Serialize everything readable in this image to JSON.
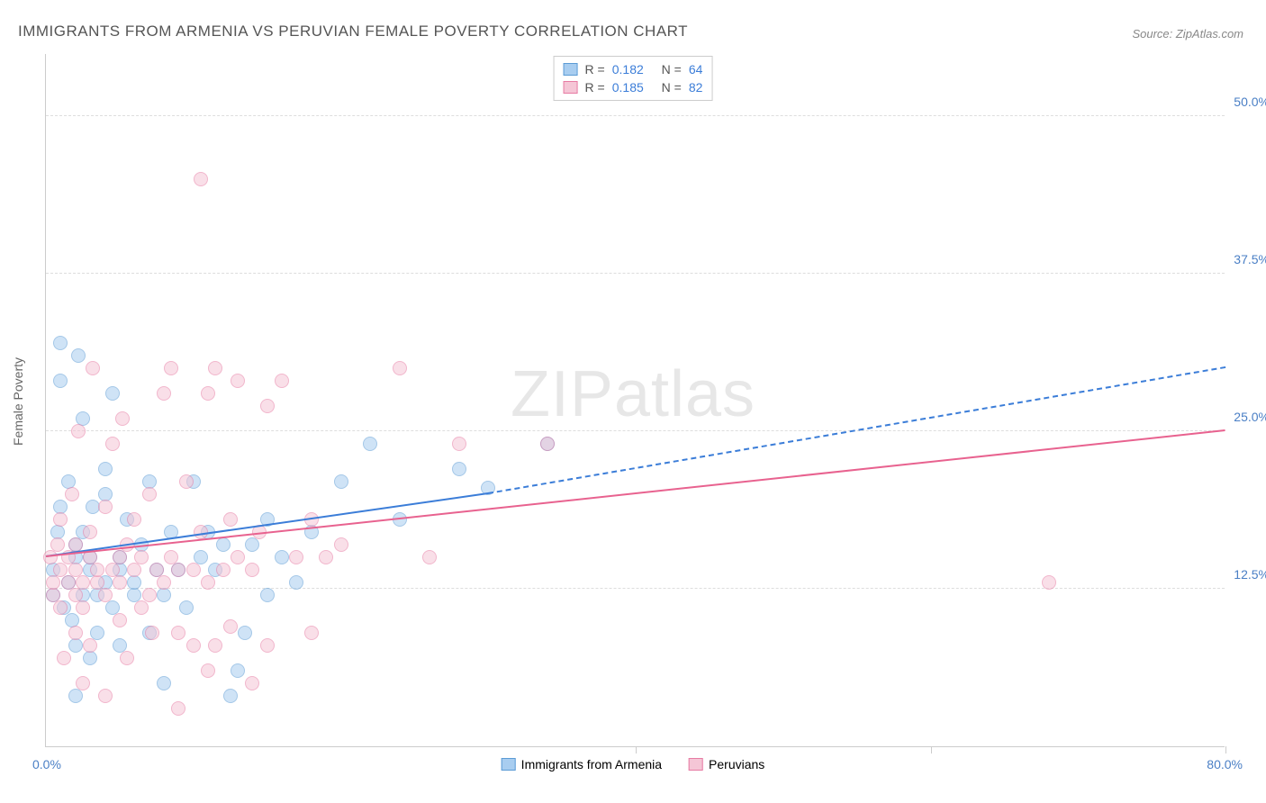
{
  "title": "IMMIGRANTS FROM ARMENIA VS PERUVIAN FEMALE POVERTY CORRELATION CHART",
  "source": "Source: ZipAtlas.com",
  "watermark_zip": "ZIP",
  "watermark_atlas": "atlas",
  "ylabel": "Female Poverty",
  "chart": {
    "type": "scatter",
    "xlim": [
      0,
      80
    ],
    "ylim": [
      0,
      55
    ],
    "x_min_label": "0.0%",
    "x_max_label": "80.0%",
    "y_ticks": [
      12.5,
      25.0,
      37.5,
      50.0
    ],
    "y_tick_labels": [
      "12.5%",
      "25.0%",
      "37.5%",
      "50.0%"
    ],
    "x_tick_positions": [
      40,
      60,
      80
    ],
    "background_color": "#ffffff",
    "grid_color": "#dddddd",
    "marker_radius": 8,
    "marker_opacity": 0.55,
    "series": [
      {
        "name": "Immigrants from Armenia",
        "color_fill": "#a8cdf0",
        "color_stroke": "#5b9bd5",
        "r_label": "R =",
        "r_value": "0.182",
        "n_label": "N =",
        "n_value": "64",
        "trend": {
          "x1": 0,
          "y1": 15.0,
          "x2_solid": 30,
          "y2_solid": 20.0,
          "x2_dash": 80,
          "y2_dash": 30.0
        },
        "points": [
          [
            0.5,
            12
          ],
          [
            0.5,
            14
          ],
          [
            0.8,
            17
          ],
          [
            1,
            19
          ],
          [
            1,
            29
          ],
          [
            1,
            32
          ],
          [
            1.2,
            11
          ],
          [
            1.5,
            13
          ],
          [
            1.5,
            21
          ],
          [
            1.8,
            10
          ],
          [
            2,
            4
          ],
          [
            2,
            8
          ],
          [
            2,
            15
          ],
          [
            2,
            16
          ],
          [
            2.2,
            31
          ],
          [
            2.5,
            12
          ],
          [
            2.5,
            17
          ],
          [
            2.5,
            26
          ],
          [
            3,
            7
          ],
          [
            3,
            14
          ],
          [
            3,
            15
          ],
          [
            3.2,
            19
          ],
          [
            3.5,
            9
          ],
          [
            3.5,
            12
          ],
          [
            4,
            13
          ],
          [
            4,
            20
          ],
          [
            4,
            22
          ],
          [
            4.5,
            11
          ],
          [
            4.5,
            28
          ],
          [
            5,
            8
          ],
          [
            5,
            14
          ],
          [
            5,
            15
          ],
          [
            5.5,
            18
          ],
          [
            6,
            12
          ],
          [
            6,
            13
          ],
          [
            6.5,
            16
          ],
          [
            7,
            9
          ],
          [
            7,
            21
          ],
          [
            7.5,
            14
          ],
          [
            8,
            5
          ],
          [
            8,
            12
          ],
          [
            8.5,
            17
          ],
          [
            9,
            14
          ],
          [
            9.5,
            11
          ],
          [
            10,
            21
          ],
          [
            10.5,
            15
          ],
          [
            11,
            17
          ],
          [
            11.5,
            14
          ],
          [
            12,
            16
          ],
          [
            12.5,
            4
          ],
          [
            13,
            6
          ],
          [
            13.5,
            9
          ],
          [
            14,
            16
          ],
          [
            15,
            12
          ],
          [
            15,
            18
          ],
          [
            16,
            15
          ],
          [
            17,
            13
          ],
          [
            18,
            17
          ],
          [
            20,
            21
          ],
          [
            22,
            24
          ],
          [
            24,
            18
          ],
          [
            28,
            22
          ],
          [
            30,
            20.5
          ],
          [
            34,
            24
          ]
        ]
      },
      {
        "name": "Peruvians",
        "color_fill": "#f5c6d6",
        "color_stroke": "#e77ba3",
        "r_label": "R =",
        "r_value": "0.185",
        "n_label": "N =",
        "n_value": "82",
        "trend": {
          "x1": 0,
          "y1": 15.0,
          "x2_solid": 80,
          "y2_solid": 25.0,
          "x2_dash": 80,
          "y2_dash": 25.0
        },
        "points": [
          [
            0.3,
            15
          ],
          [
            0.5,
            12
          ],
          [
            0.5,
            13
          ],
          [
            0.8,
            16
          ],
          [
            1,
            11
          ],
          [
            1,
            14
          ],
          [
            1,
            18
          ],
          [
            1.2,
            7
          ],
          [
            1.5,
            13
          ],
          [
            1.5,
            15
          ],
          [
            1.8,
            20
          ],
          [
            2,
            9
          ],
          [
            2,
            12
          ],
          [
            2,
            14
          ],
          [
            2,
            16
          ],
          [
            2.2,
            25
          ],
          [
            2.5,
            5
          ],
          [
            2.5,
            11
          ],
          [
            2.5,
            13
          ],
          [
            3,
            8
          ],
          [
            3,
            15
          ],
          [
            3,
            17
          ],
          [
            3.2,
            30
          ],
          [
            3.5,
            13
          ],
          [
            3.5,
            14
          ],
          [
            4,
            4
          ],
          [
            4,
            12
          ],
          [
            4,
            19
          ],
          [
            4.5,
            14
          ],
          [
            4.5,
            24
          ],
          [
            5,
            10
          ],
          [
            5,
            13
          ],
          [
            5,
            15
          ],
          [
            5.2,
            26
          ],
          [
            5.5,
            7
          ],
          [
            5.5,
            16
          ],
          [
            6,
            14
          ],
          [
            6,
            18
          ],
          [
            6.5,
            11
          ],
          [
            6.5,
            15
          ],
          [
            7,
            12
          ],
          [
            7,
            20
          ],
          [
            7.2,
            9
          ],
          [
            7.5,
            14
          ],
          [
            8,
            13
          ],
          [
            8,
            28
          ],
          [
            8.5,
            15
          ],
          [
            8.5,
            30
          ],
          [
            9,
            3
          ],
          [
            9,
            9
          ],
          [
            9,
            14
          ],
          [
            9.5,
            21
          ],
          [
            10,
            8
          ],
          [
            10,
            14
          ],
          [
            10.5,
            17
          ],
          [
            10.5,
            45
          ],
          [
            11,
            6
          ],
          [
            11,
            13
          ],
          [
            11,
            28
          ],
          [
            11.5,
            8
          ],
          [
            11.5,
            30
          ],
          [
            12,
            14
          ],
          [
            12.5,
            9.5
          ],
          [
            12.5,
            18
          ],
          [
            13,
            15
          ],
          [
            13,
            29
          ],
          [
            14,
            5
          ],
          [
            14,
            14
          ],
          [
            14.5,
            17
          ],
          [
            15,
            8
          ],
          [
            15,
            27
          ],
          [
            16,
            29
          ],
          [
            17,
            15
          ],
          [
            18,
            9
          ],
          [
            18,
            18
          ],
          [
            19,
            15
          ],
          [
            20,
            16
          ],
          [
            24,
            30
          ],
          [
            26,
            15
          ],
          [
            28,
            24
          ],
          [
            34,
            24
          ],
          [
            68,
            13
          ]
        ]
      }
    ]
  }
}
